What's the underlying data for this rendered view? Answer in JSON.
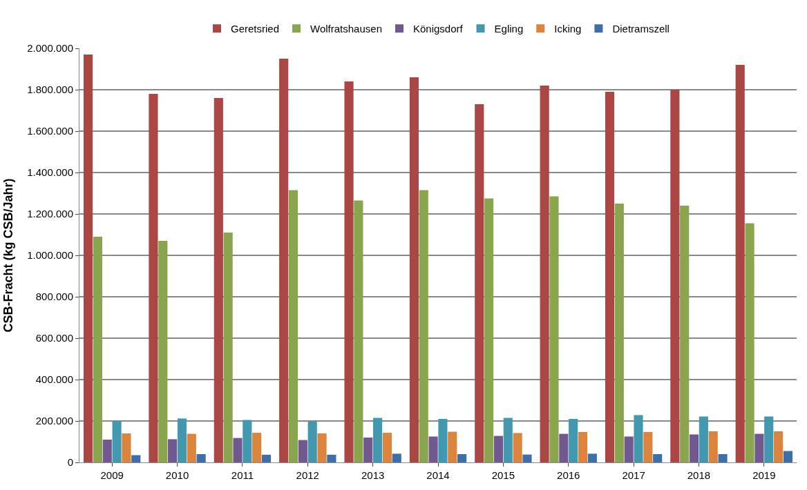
{
  "chart_data": {
    "type": "bar",
    "ylabel": "CSB-Fracht (kg CSB/Jahr)",
    "categories": [
      "2009",
      "2010",
      "2011",
      "2012",
      "2013",
      "2014",
      "2015",
      "2016",
      "2017",
      "2018",
      "2019"
    ],
    "series": [
      {
        "name": "Geretsried",
        "color": "#aa4643",
        "values": [
          1970000,
          1780000,
          1760000,
          1950000,
          1840000,
          1860000,
          1730000,
          1820000,
          1790000,
          1800000,
          1920000
        ]
      },
      {
        "name": "Wolfratshausen",
        "color": "#89a54e",
        "values": [
          1090000,
          1070000,
          1110000,
          1315000,
          1265000,
          1315000,
          1275000,
          1285000,
          1250000,
          1240000,
          1155000
        ]
      },
      {
        "name": "Königsdorf",
        "color": "#71588f",
        "values": [
          110000,
          112000,
          118000,
          108000,
          120000,
          125000,
          128000,
          138000,
          125000,
          135000,
          138000
        ]
      },
      {
        "name": "Egling",
        "color": "#4198af",
        "values": [
          200000,
          212000,
          205000,
          197000,
          215000,
          210000,
          215000,
          210000,
          228000,
          222000,
          222000
        ]
      },
      {
        "name": "Icking",
        "color": "#db843d",
        "values": [
          140000,
          138000,
          143000,
          140000,
          143000,
          148000,
          142000,
          147000,
          147000,
          150000,
          150000
        ]
      },
      {
        "name": "Dietramszell",
        "color": "#3d70a8",
        "values": [
          35000,
          40000,
          37000,
          37000,
          42000,
          40000,
          38000,
          42000,
          40000,
          40000,
          55000
        ]
      }
    ],
    "ylim": [
      0,
      2000000
    ],
    "yticks": [
      0,
      {
        "value": 200000,
        "label": "200.000"
      },
      {
        "value": 400000,
        "label": "400.000"
      },
      {
        "value": 600000,
        "label": "600.000"
      },
      {
        "value": 800000,
        "label": "800.000"
      },
      {
        "value": 1000000,
        "label": "1.000.000"
      },
      {
        "value": 1200000,
        "label": "1.200.000"
      },
      {
        "value": 1400000,
        "label": "1.400.000"
      },
      {
        "value": 1600000,
        "label": "1.600.000"
      },
      {
        "value": 1800000,
        "label": "1.800.000"
      },
      {
        "value": 2000000,
        "label": "2.000.000"
      }
    ],
    "grid": "y",
    "legend": "top"
  }
}
